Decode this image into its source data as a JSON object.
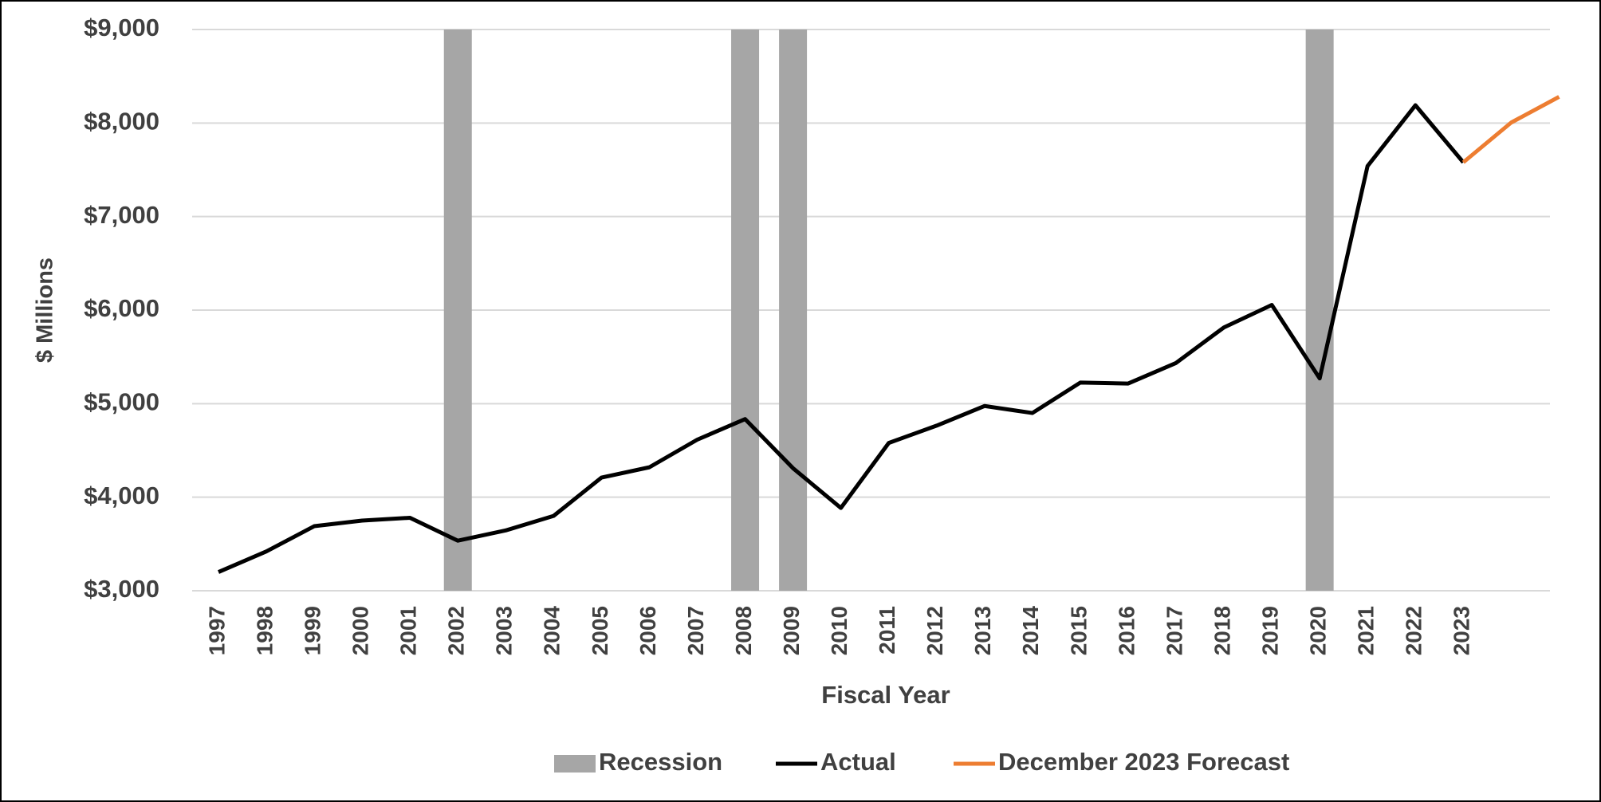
{
  "chart_data": {
    "type": "line",
    "categories": [
      "1997",
      "1998",
      "1999",
      "2000",
      "2001",
      "2002",
      "2003",
      "2004",
      "2005",
      "2006",
      "2007",
      "2008",
      "2009",
      "2010",
      "2011",
      "2012",
      "2013",
      "2014",
      "2015",
      "2016",
      "2017",
      "2018",
      "2019",
      "2020",
      "2021",
      "2022",
      "2023",
      null,
      null
    ],
    "series": [
      {
        "name": "Recession",
        "type": "bar",
        "color": "#a6a6a6",
        "values": [
          null,
          null,
          null,
          null,
          null,
          9000,
          null,
          null,
          null,
          null,
          null,
          9000,
          9000,
          null,
          null,
          null,
          null,
          null,
          null,
          null,
          null,
          null,
          null,
          9000,
          null,
          null,
          null,
          null,
          null
        ]
      },
      {
        "name": "Actual",
        "type": "line",
        "color": "#000000",
        "values": [
          3200,
          3420,
          3690,
          3750,
          3780,
          3535,
          3645,
          3800,
          4210,
          4320,
          4615,
          4835,
          4310,
          3885,
          4580,
          4765,
          4975,
          4900,
          5225,
          5215,
          5435,
          5815,
          6055,
          5270,
          7540,
          8190,
          7580,
          null,
          null
        ]
      },
      {
        "name": "December 2023 Forecast",
        "type": "line",
        "color": "#ed7d31",
        "values": [
          null,
          null,
          null,
          null,
          null,
          null,
          null,
          null,
          null,
          null,
          null,
          null,
          null,
          null,
          null,
          null,
          null,
          null,
          null,
          null,
          null,
          null,
          null,
          null,
          null,
          null,
          7580,
          8005,
          8280
        ]
      }
    ],
    "ylim": [
      3000,
      9000
    ],
    "yticks": [
      {
        "value": 3000,
        "label": "$3,000"
      },
      {
        "value": 4000,
        "label": "$4,000"
      },
      {
        "value": 5000,
        "label": "$5,000"
      },
      {
        "value": 6000,
        "label": "$6,000"
      },
      {
        "value": 7000,
        "label": "$7,000"
      },
      {
        "value": 8000,
        "label": "$8,000"
      },
      {
        "value": 9000,
        "label": "$9,000"
      }
    ],
    "ylabel": "$ Millions",
    "xlabel": "Fiscal Year",
    "grid": true,
    "legend": "bottom"
  }
}
